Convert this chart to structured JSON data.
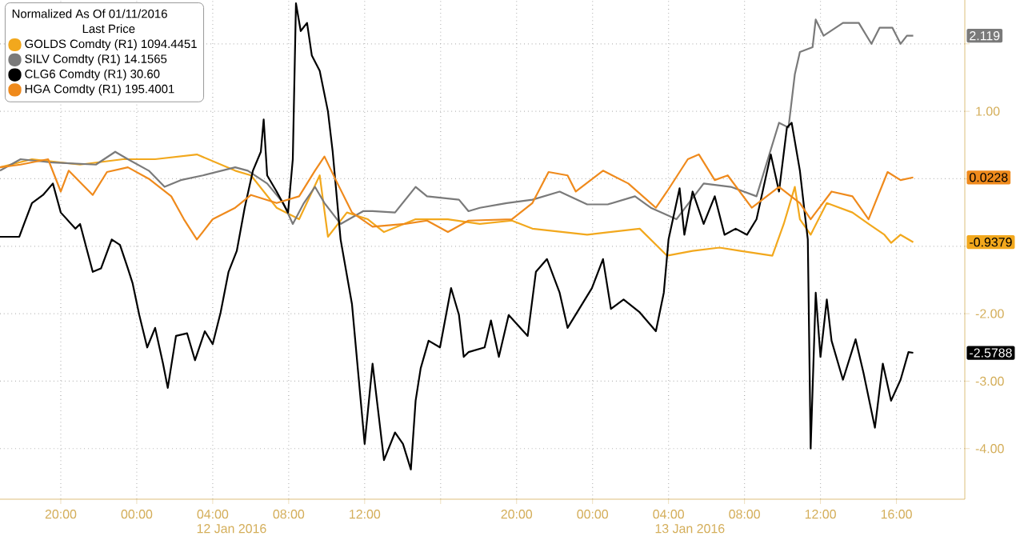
{
  "chart_data": {
    "type": "line",
    "legend_title": "Normalized As Of 01/11/2016",
    "legend": "top left",
    "grid": true,
    "xlim": [
      "2016-01-11T16:48",
      "2016-01-13T19:36"
    ],
    "ylim": [
      -4.75,
      2.65
    ],
    "xticks": [
      {
        "value": "2016-01-11T20:00",
        "label": "20:00"
      },
      {
        "value": "2016-01-12T00:00",
        "label": "00:00"
      },
      {
        "value": "2016-01-12T04:00",
        "label": "04:00"
      },
      {
        "value": "2016-01-12T08:00",
        "label": "08:00"
      },
      {
        "value": "2016-01-12T12:00",
        "label": "12:00"
      },
      {
        "value": "2016-01-12T16:00",
        "label": null
      },
      {
        "value": "2016-01-12T20:00",
        "label": "20:00"
      },
      {
        "value": "2016-01-13T00:00",
        "label": "00:00"
      },
      {
        "value": "2016-01-13T04:00",
        "label": "04:00"
      },
      {
        "value": "2016-01-13T08:00",
        "label": "08:00"
      },
      {
        "value": "2016-01-13T12:00",
        "label": "12:00"
      },
      {
        "value": "2016-01-13T16:00",
        "label": "16:00"
      }
    ],
    "yticks": [
      {
        "value": 2,
        "label": null
      },
      {
        "value": 1,
        "label": "1.00"
      },
      {
        "value": 0,
        "label": null
      },
      {
        "value": -1,
        "label": null
      },
      {
        "value": -2,
        "label": "-2.00"
      },
      {
        "value": -3,
        "label": "-3.00"
      },
      {
        "value": -4,
        "label": "-4.00"
      }
    ],
    "annotations": [
      "Last Price",
      "12 Jan 2016",
      "13 Jan 2016",
      "2.119",
      "0.0228",
      "-0.9379",
      "-2.5788"
    ],
    "series": [
      {
        "name": "GOLDS Comdty (R1) 1094.4451",
        "color": "#f2a81d",
        "x": [
          "2016-01-11T16:48",
          "2016-01-11T18:29",
          "2016-01-11T21:01",
          "2016-01-11T23:17",
          "2016-01-12T00:58",
          "2016-01-12T03:10",
          "2016-01-12T05:11",
          "2016-01-12T06:01",
          "2016-01-12T07:22",
          "2016-01-12T08:33",
          "2016-01-12T09:38",
          "2016-01-12T10:04",
          "2016-01-12T11:04",
          "2016-01-12T12:10",
          "2016-01-12T13:01",
          "2016-01-12T14:41",
          "2016-01-12T16:23",
          "2016-01-12T18:04",
          "2016-01-12T19:45",
          "2016-01-12T20:50",
          "2016-01-12T23:43",
          "2016-01-13T02:29",
          "2016-01-13T03:55",
          "2016-01-13T05:16",
          "2016-01-13T06:41",
          "2016-01-13T07:47",
          "2016-01-13T09:28",
          "2016-01-13T10:04",
          "2016-01-13T10:39",
          "2016-01-13T10:55",
          "2016-01-13T11:29",
          "2016-01-13T12:20",
          "2016-01-13T13:41",
          "2016-01-13T14:32",
          "2016-01-13T15:22",
          "2016-01-13T15:43",
          "2016-01-13T16:13",
          "2016-01-13T16:53"
        ],
        "values": [
          0.17,
          0.29,
          0.21,
          0.29,
          0.29,
          0.36,
          0.12,
          0.05,
          -0.43,
          -0.6,
          0.05,
          -0.86,
          -0.5,
          -0.6,
          -0.79,
          -0.6,
          -0.6,
          -0.67,
          -0.62,
          -0.74,
          -0.83,
          -0.74,
          -1.14,
          -1.07,
          -1.02,
          -1.07,
          -1.14,
          -0.67,
          -0.12,
          -0.6,
          -0.83,
          -0.36,
          -0.5,
          -0.67,
          -0.83,
          -0.95,
          -0.83,
          -0.94
        ]
      },
      {
        "name": "SILV Comdty (R1) 14.1565",
        "color": "#7a7a7a",
        "x": [
          "2016-01-11T16:48",
          "2016-01-11T17:53",
          "2016-01-11T19:35",
          "2016-01-11T21:51",
          "2016-01-11T22:52",
          "2016-01-11T23:32",
          "2016-01-12T00:38",
          "2016-01-12T01:28",
          "2016-01-12T02:19",
          "2016-01-12T03:29",
          "2016-01-12T05:11",
          "2016-01-12T05:51",
          "2016-01-12T06:52",
          "2016-01-12T07:43",
          "2016-01-12T08:13",
          "2016-01-12T08:48",
          "2016-01-12T09:23",
          "2016-01-12T09:53",
          "2016-01-12T10:44",
          "2016-01-12T11:55",
          "2016-01-12T12:25",
          "2016-01-12T13:36",
          "2016-01-12T14:41",
          "2016-01-12T15:17",
          "2016-01-12T16:58",
          "2016-01-12T17:28",
          "2016-01-12T18:04",
          "2016-01-12T19:29",
          "2016-01-12T20:50",
          "2016-01-12T22:16",
          "2016-01-12T23:43",
          "2016-01-13T00:48",
          "2016-01-13T02:14",
          "2016-01-13T03:04",
          "2016-01-13T04:25",
          "2016-01-13T05:51",
          "2016-01-13T07:17",
          "2016-01-13T08:38",
          "2016-01-13T09:49",
          "2016-01-13T10:19",
          "2016-01-13T10:39",
          "2016-01-13T10:55",
          "2016-01-13T11:35",
          "2016-01-13T11:45",
          "2016-01-13T12:10",
          "2016-01-13T13:11",
          "2016-01-13T14:01",
          "2016-01-13T14:41",
          "2016-01-13T15:07",
          "2016-01-13T15:47",
          "2016-01-13T16:13",
          "2016-01-13T16:33",
          "2016-01-13T16:53"
        ],
        "values": [
          0.12,
          0.29,
          0.24,
          0.21,
          0.4,
          0.29,
          0.12,
          -0.12,
          -0.02,
          0.05,
          0.17,
          0.12,
          -0.07,
          -0.36,
          -0.67,
          -0.36,
          -0.12,
          -0.36,
          -0.67,
          -0.48,
          -0.48,
          -0.5,
          -0.12,
          -0.26,
          -0.31,
          -0.48,
          -0.43,
          -0.36,
          -0.31,
          -0.19,
          -0.38,
          -0.38,
          -0.26,
          -0.43,
          -0.6,
          -0.07,
          -0.12,
          -0.26,
          0.83,
          0.76,
          1.55,
          1.88,
          1.95,
          2.36,
          2.12,
          2.31,
          2.31,
          2.0,
          2.24,
          2.24,
          2.0,
          2.12,
          2.12
        ]
      },
      {
        "name": "CLG6 Comdty (R1) 30.60",
        "color": "#000000",
        "x": [
          "2016-01-11T16:48",
          "2016-01-11T17:49",
          "2016-01-11T18:04",
          "2016-01-11T18:29",
          "2016-01-11T19:04",
          "2016-01-11T19:35",
          "2016-01-11T20:00",
          "2016-01-11T20:46",
          "2016-01-11T21:01",
          "2016-01-11T21:41",
          "2016-01-11T22:07",
          "2016-01-11T22:41",
          "2016-01-11T23:07",
          "2016-01-11T23:32",
          "2016-01-11T23:47",
          "2016-01-12T00:08",
          "2016-01-12T00:33",
          "2016-01-12T00:58",
          "2016-01-12T01:23",
          "2016-01-12T01:38",
          "2016-01-12T02:04",
          "2016-01-12T02:39",
          "2016-01-12T03:04",
          "2016-01-12T03:35",
          "2016-01-12T04:00",
          "2016-01-12T04:25",
          "2016-01-12T04:50",
          "2016-01-12T05:16",
          "2016-01-12T05:41",
          "2016-01-12T06:07",
          "2016-01-12T06:32",
          "2016-01-12T06:41",
          "2016-01-12T06:52",
          "2016-01-12T07:22",
          "2016-01-12T07:58",
          "2016-01-12T08:13",
          "2016-01-12T08:23",
          "2016-01-12T08:38",
          "2016-01-12T08:58",
          "2016-01-12T09:13",
          "2016-01-12T09:38",
          "2016-01-12T10:04",
          "2016-01-12T10:19",
          "2016-01-12T10:44",
          "2016-01-12T11:20",
          "2016-01-12T11:35",
          "2016-01-12T12:00",
          "2016-01-12T12:25",
          "2016-01-12T13:01",
          "2016-01-12T13:36",
          "2016-01-12T14:01",
          "2016-01-12T14:26",
          "2016-01-12T14:41",
          "2016-01-12T14:57",
          "2016-01-12T15:22",
          "2016-01-12T15:58",
          "2016-01-12T16:33",
          "2016-01-12T16:58",
          "2016-01-12T17:13",
          "2016-01-12T17:28",
          "2016-01-12T18:19",
          "2016-01-12T18:39",
          "2016-01-12T19:04",
          "2016-01-12T19:35",
          "2016-01-12T20:35",
          "2016-01-12T21:01",
          "2016-01-12T21:36",
          "2016-01-12T22:16",
          "2016-01-12T22:41",
          "2016-01-12T23:58",
          "2016-01-13T00:33",
          "2016-01-13T00:58",
          "2016-01-13T01:38",
          "2016-01-13T02:29",
          "2016-01-13T03:20",
          "2016-01-13T03:45",
          "2016-01-13T04:00",
          "2016-01-13T04:35",
          "2016-01-13T04:50",
          "2016-01-13T05:16",
          "2016-01-13T05:51",
          "2016-01-13T06:26",
          "2016-01-13T06:57",
          "2016-01-13T07:32",
          "2016-01-13T08:08",
          "2016-01-13T08:38",
          "2016-01-13T09:23",
          "2016-01-13T09:49",
          "2016-01-13T10:14",
          "2016-01-13T10:29",
          "2016-01-13T10:55",
          "2016-01-13T11:10",
          "2016-01-13T11:20",
          "2016-01-13T11:29",
          "2016-01-13T11:45",
          "2016-01-13T12:00",
          "2016-01-13T12:20",
          "2016-01-13T12:35",
          "2016-01-13T13:11",
          "2016-01-13T13:51",
          "2016-01-13T14:16",
          "2016-01-13T14:52",
          "2016-01-13T15:17",
          "2016-01-13T15:43",
          "2016-01-13T16:13",
          "2016-01-13T16:38",
          "2016-01-13T16:53"
        ],
        "values": [
          -0.86,
          -0.86,
          -0.67,
          -0.36,
          -0.24,
          -0.07,
          -0.5,
          -0.74,
          -0.67,
          -1.38,
          -1.33,
          -0.9,
          -0.98,
          -1.33,
          -1.55,
          -2.02,
          -2.5,
          -2.21,
          -2.74,
          -3.1,
          -2.33,
          -2.29,
          -2.69,
          -2.26,
          -2.45,
          -1.98,
          -1.38,
          -1.07,
          -0.43,
          0.12,
          0.4,
          0.88,
          0.05,
          -0.19,
          -0.5,
          0.29,
          2.6,
          2.19,
          2.31,
          1.83,
          1.6,
          1.0,
          0.4,
          -0.9,
          -1.86,
          -2.64,
          -3.93,
          -2.74,
          -4.17,
          -3.76,
          -3.93,
          -4.31,
          -3.29,
          -2.81,
          -2.4,
          -2.5,
          -1.62,
          -2.02,
          -2.64,
          -2.57,
          -2.5,
          -2.1,
          -2.64,
          -2.02,
          -2.33,
          -1.38,
          -1.19,
          -1.69,
          -2.21,
          -1.62,
          -1.19,
          -1.93,
          -1.79,
          -1.98,
          -2.26,
          -1.69,
          -0.9,
          -0.14,
          -0.83,
          -0.19,
          -0.67,
          -0.26,
          -0.83,
          -0.74,
          -0.83,
          -0.6,
          0.36,
          -0.19,
          0.76,
          0.83,
          0.12,
          -0.5,
          -0.9,
          -4.0,
          -1.69,
          -2.64,
          -1.79,
          -2.4,
          -2.98,
          -2.38,
          -2.88,
          -3.69,
          -2.74,
          -3.29,
          -2.98,
          -2.57,
          -2.58
        ]
      },
      {
        "name": "HGA Comdty (R1) 195.4001",
        "color": "#ef8a1c",
        "x": [
          "2016-01-11T16:48",
          "2016-01-11T17:53",
          "2016-01-11T19:20",
          "2016-01-11T20:00",
          "2016-01-11T20:25",
          "2016-01-11T21:41",
          "2016-01-11T22:26",
          "2016-01-11T23:32",
          "2016-01-12T00:38",
          "2016-01-12T01:49",
          "2016-01-12T02:29",
          "2016-01-12T03:10",
          "2016-01-12T04:00",
          "2016-01-12T05:11",
          "2016-01-12T06:01",
          "2016-01-12T07:22",
          "2016-01-12T08:33",
          "2016-01-12T09:23",
          "2016-01-12T09:53",
          "2016-01-12T10:29",
          "2016-01-12T11:20",
          "2016-01-12T12:25",
          "2016-01-12T14:07",
          "2016-01-12T15:17",
          "2016-01-12T16:23",
          "2016-01-12T17:28",
          "2016-01-12T19:45",
          "2016-01-12T20:50",
          "2016-01-12T21:41",
          "2016-01-12T22:41",
          "2016-01-12T23:07",
          "2016-01-13T00:33",
          "2016-01-13T01:53",
          "2016-01-13T03:20",
          "2016-01-13T03:55",
          "2016-01-13T05:01",
          "2016-01-13T05:36",
          "2016-01-13T06:26",
          "2016-01-13T07:07",
          "2016-01-13T08:23",
          "2016-01-13T09:49",
          "2016-01-13T10:55",
          "2016-01-13T11:29",
          "2016-01-13T12:35",
          "2016-01-13T13:41",
          "2016-01-13T14:32",
          "2016-01-13T15:32",
          "2016-01-13T16:13",
          "2016-01-13T16:53"
        ],
        "values": [
          0.17,
          0.21,
          0.29,
          -0.19,
          0.12,
          -0.24,
          0.1,
          0.17,
          0.0,
          -0.26,
          -0.6,
          -0.9,
          -0.6,
          -0.43,
          -0.24,
          -0.36,
          -0.26,
          0.12,
          0.33,
          -0.02,
          -0.5,
          -0.71,
          -0.67,
          -0.62,
          -0.79,
          -0.62,
          -0.6,
          -0.36,
          0.1,
          0.05,
          -0.19,
          0.12,
          -0.07,
          -0.43,
          -0.19,
          0.29,
          0.36,
          -0.02,
          0.05,
          -0.43,
          -0.12,
          -0.36,
          -0.6,
          -0.19,
          -0.26,
          -0.6,
          0.1,
          -0.02,
          0.02
        ]
      }
    ]
  }
}
